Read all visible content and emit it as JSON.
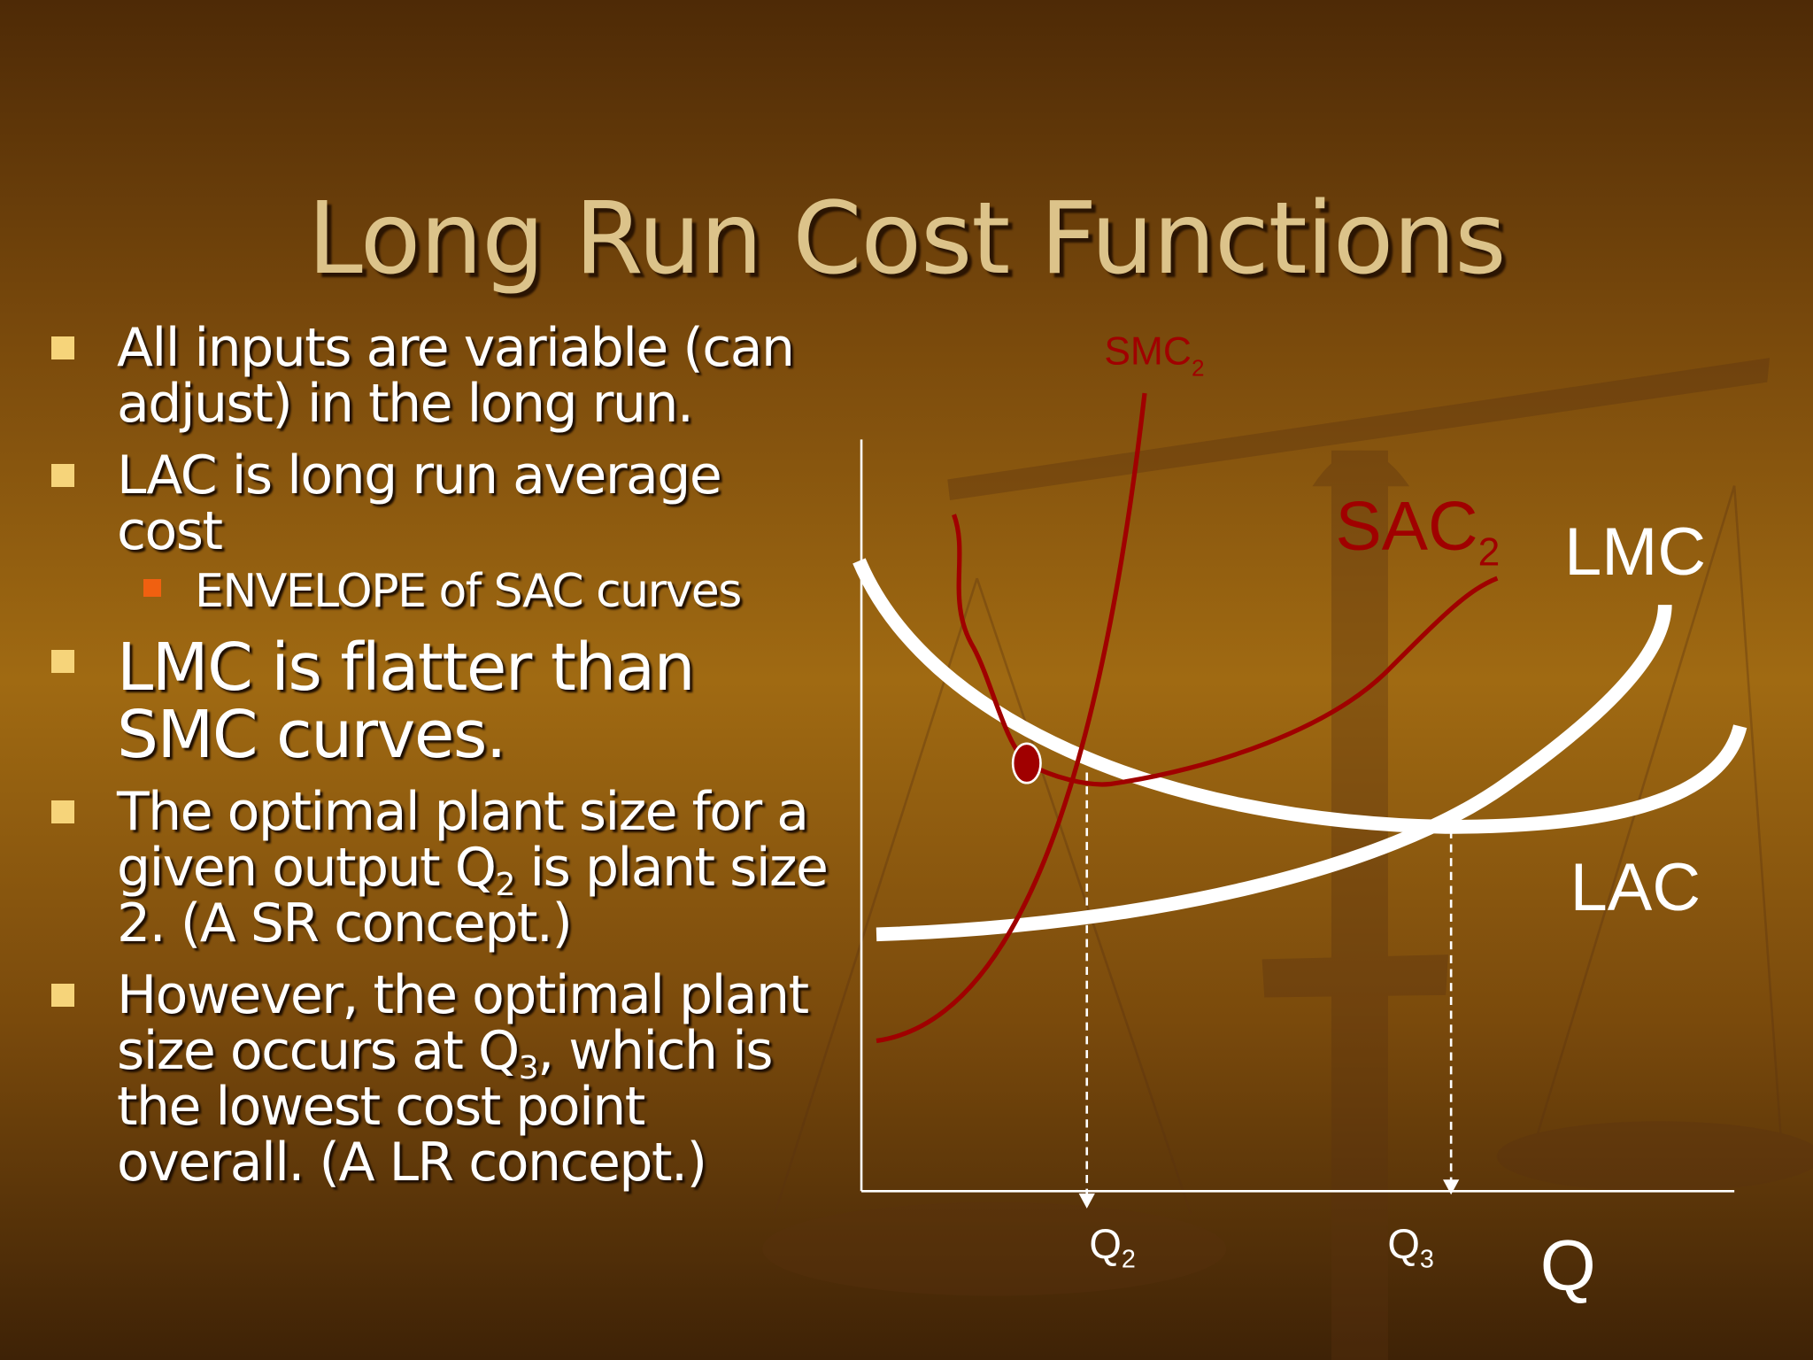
{
  "title": "Long Run Cost Functions",
  "bullets": [
    {
      "text": "All inputs are variable (can adjust) in the long run."
    },
    {
      "text": "LAC is long run average cost",
      "sub_bullets": [
        "ENVELOPE of SAC curves"
      ]
    },
    {
      "text": "LMC is flatter than SMC curves."
    },
    {
      "text": "The optimal plant size for a given output Q",
      "sub": "2",
      "after": " is plant size 2. (A SR concept.)"
    },
    {
      "text": "However, the optimal plant size occurs at Q",
      "sub": "3",
      "after": ", which is the lowest cost point overall. (A LR concept.)"
    }
  ],
  "diagram": {
    "smc": {
      "text": "SMC",
      "sub": "2"
    },
    "sac": {
      "text": "SAC",
      "sub": "2"
    },
    "lmc": "LMC",
    "lac": "LAC",
    "q2": {
      "text": "Q",
      "sub": "2"
    },
    "q3": {
      "text": "Q",
      "sub": "3"
    },
    "q": "Q"
  }
}
